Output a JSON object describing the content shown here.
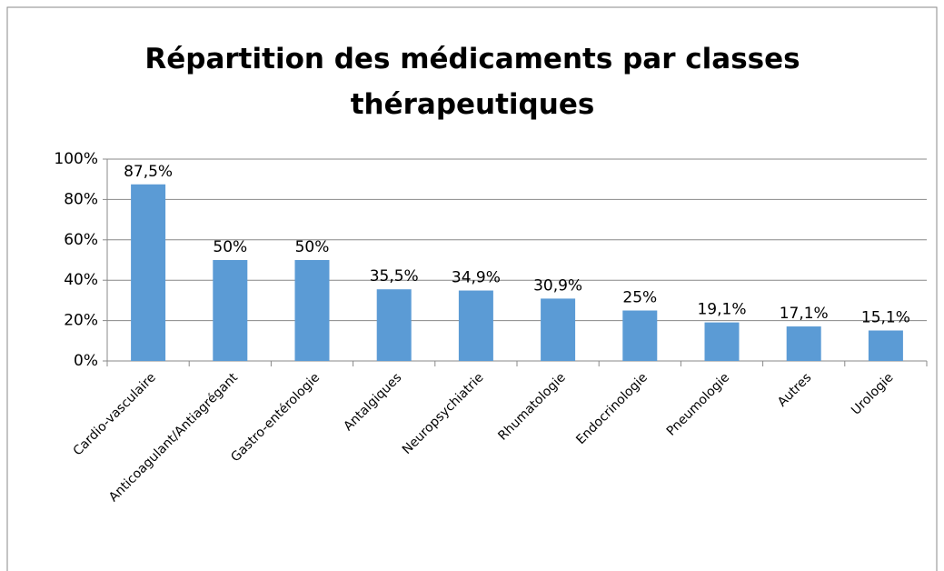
{
  "chart_data": {
    "type": "bar",
    "title": "Répartition des médicaments par classes thérapeutiques",
    "categories": [
      "Cardio-vasculaire",
      "Anticoagulant/Antiagrégant",
      "Gastro-entérologie",
      "Antalgiques",
      "Neuropsychiatrie",
      "Rhumatologie",
      "Endocrinologie",
      "Pneumologie",
      "Autres",
      "Urologie"
    ],
    "values": [
      87.5,
      50,
      50,
      35.5,
      34.9,
      30.9,
      25,
      19.1,
      17.1,
      15.1
    ],
    "value_labels": [
      "87,5%",
      "50%",
      "50%",
      "35,5%",
      "34,9%",
      "30,9%",
      "25%",
      "19,1%",
      "17,1%",
      "15,1%"
    ],
    "color": "#5b9bd5",
    "ylim": [
      0,
      100
    ],
    "yticks": [
      {
        "value": 0,
        "label": "0%"
      },
      {
        "value": 20,
        "label": "20%"
      },
      {
        "value": 40,
        "label": "40%"
      },
      {
        "value": 60,
        "label": "60%"
      },
      {
        "value": 80,
        "label": "80%"
      },
      {
        "value": 100,
        "label": "100%"
      }
    ],
    "grid": true
  }
}
